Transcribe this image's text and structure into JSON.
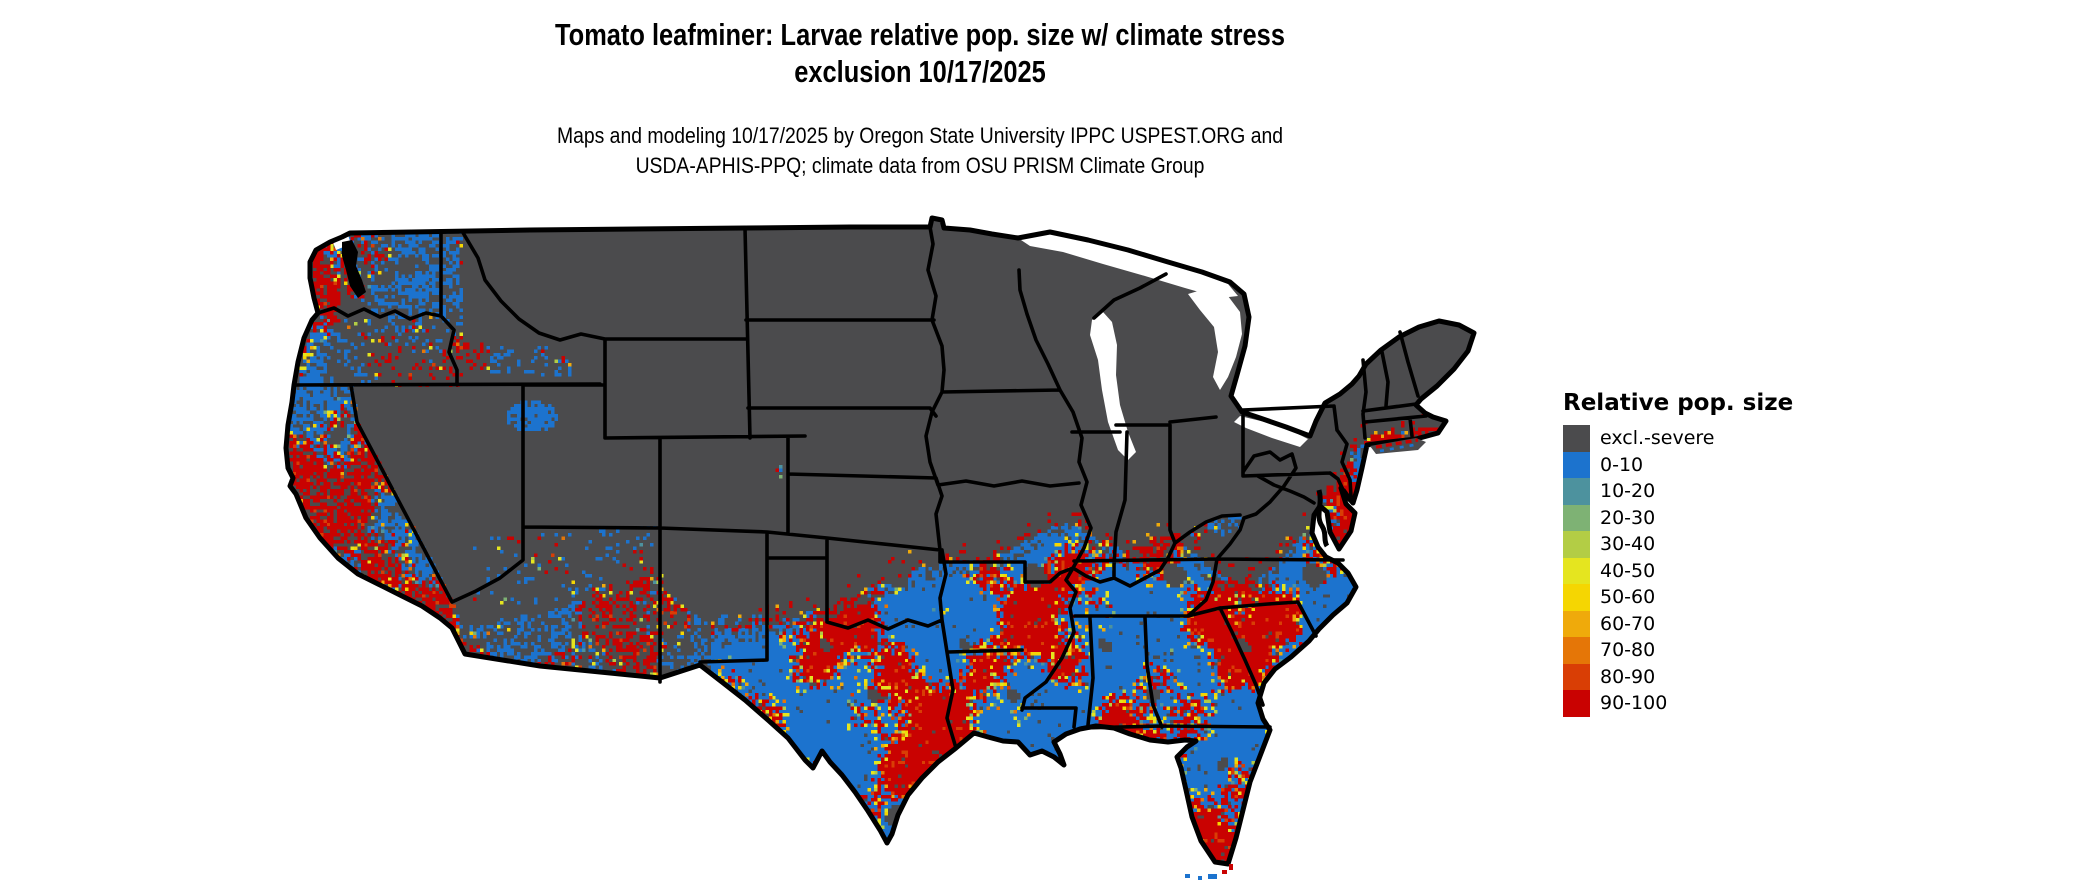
{
  "header": {
    "title_line1": "Tomato leafminer: Larvae relative pop. size w/ climate stress",
    "title_line2": "exclusion 10/17/2025",
    "subtitle_line1": "Maps and modeling 10/17/2025 by Oregon State University IPPC USPEST.ORG and",
    "subtitle_line2": "USDA-APHIS-PPQ; climate data from OSU PRISM Climate Group"
  },
  "legend": {
    "title": "Relative pop. size",
    "items": [
      {
        "label": "excl.-severe",
        "color": "#4B4B4D"
      },
      {
        "label": "0-10",
        "color": "#1C73CE"
      },
      {
        "label": "10-20",
        "color": "#4D929E"
      },
      {
        "label": "20-30",
        "color": "#7EB274"
      },
      {
        "label": "30-40",
        "color": "#B3CD45"
      },
      {
        "label": "40-50",
        "color": "#E5E51F"
      },
      {
        "label": "50-60",
        "color": "#F5D602"
      },
      {
        "label": "60-70",
        "color": "#EFAA0B"
      },
      {
        "label": "70-80",
        "color": "#E57607"
      },
      {
        "label": "80-90",
        "color": "#D93E05"
      },
      {
        "label": "90-100",
        "color": "#C90201"
      }
    ]
  },
  "map": {
    "region": "Contiguous United States",
    "border_color": "#000000",
    "water_color": "#FFFFFF",
    "excluded_color": "#4B4B4D"
  }
}
